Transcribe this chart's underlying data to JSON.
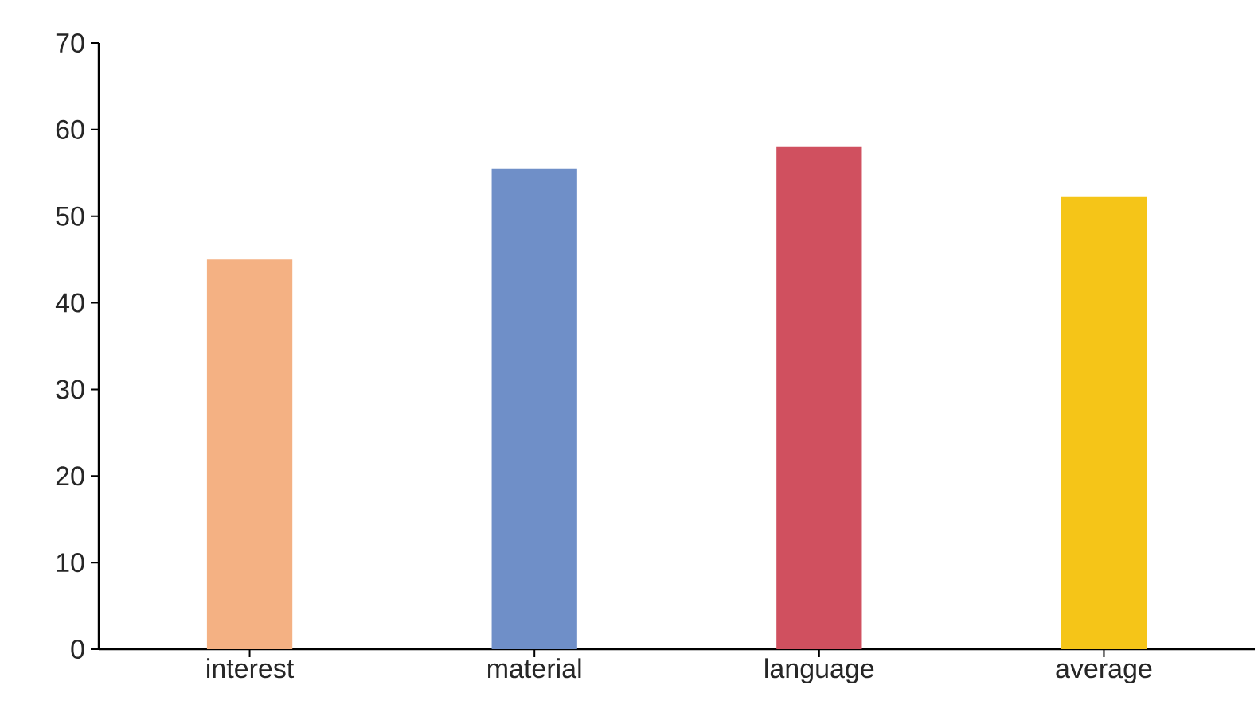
{
  "chart_data": {
    "type": "bar",
    "categories": [
      "interest",
      "material",
      "language",
      "average"
    ],
    "values": [
      45,
      55.5,
      58,
      52.3
    ],
    "colors": [
      "#f4b183",
      "#6f8fc8",
      "#d0505f",
      "#f5c518"
    ],
    "ylim": [
      0,
      70
    ],
    "yticks": [
      0,
      10,
      20,
      30,
      40,
      50,
      60,
      70
    ]
  }
}
